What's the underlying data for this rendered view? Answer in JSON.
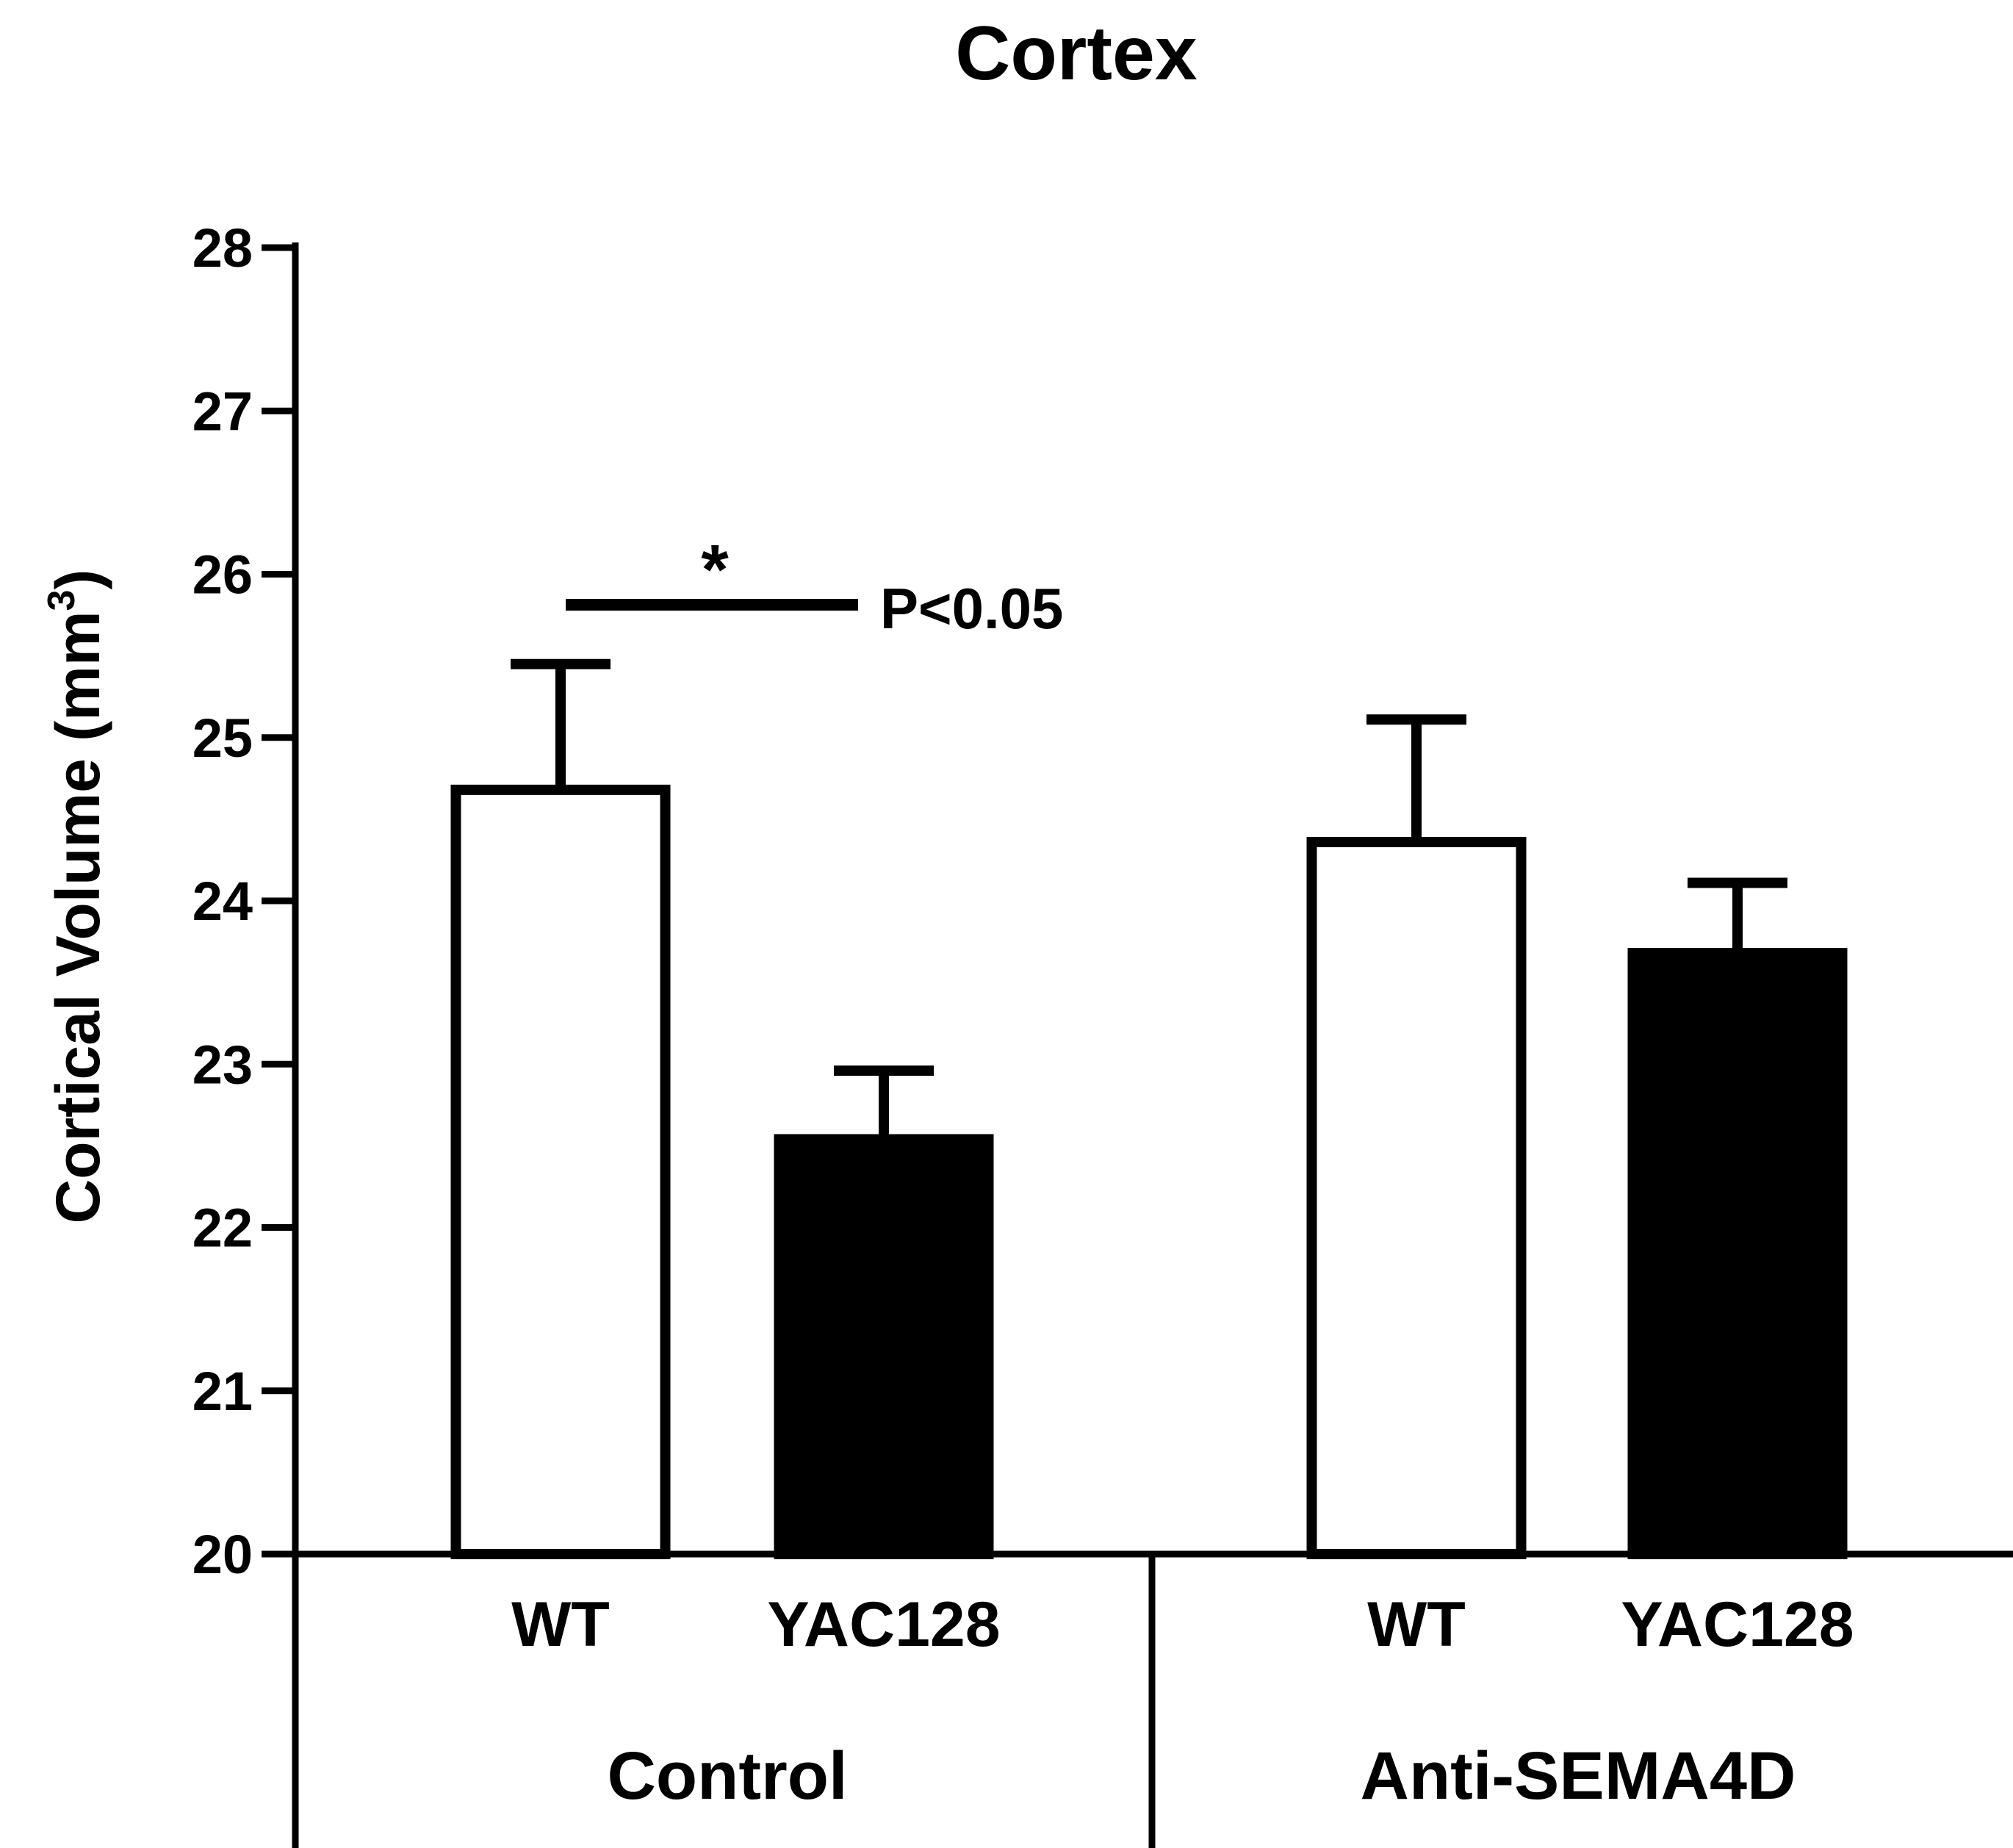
{
  "chart_data": {
    "type": "bar",
    "title": "Cortex",
    "ylabel": "Cortical Volume (mm",
    "ylabel_superscript": "3",
    "ylabel_close": ")",
    "ylim": [
      20,
      28
    ],
    "yticks": [
      "20",
      "21",
      "22",
      "23",
      "24",
      "25",
      "26",
      "27",
      "28"
    ],
    "grid": false,
    "categories": [
      "WT",
      "YAC128",
      "WT",
      "YAC128"
    ],
    "groups": [
      {
        "label": "Control",
        "categories": [
          "WT",
          "YAC128"
        ]
      },
      {
        "label": "Anti-SEMA4D",
        "categories": [
          "WT",
          "YAC128"
        ]
      }
    ],
    "values": [
      24.68,
      22.54,
      24.36,
      23.68
    ],
    "errors": [
      0.77,
      0.42,
      0.75,
      0.43
    ],
    "fills": [
      "#ffffff",
      "#000000",
      "#ffffff",
      "#000000"
    ],
    "annotation": {
      "star": "*",
      "text": "P<0.05"
    }
  }
}
